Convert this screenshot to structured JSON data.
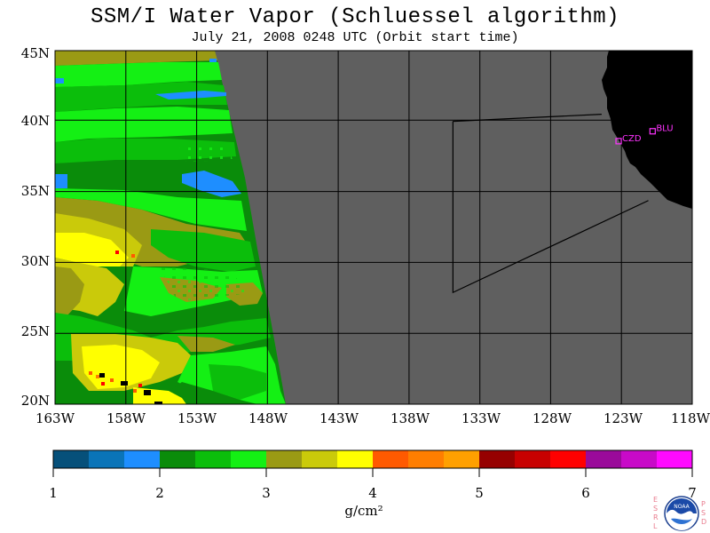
{
  "title": "SSM/I Water Vapor (Schluessel algorithm)",
  "subtitle": "July 21, 2008  0248 UTC  (Orbit start time)",
  "map": {
    "lon_range": [
      -163,
      -118
    ],
    "lat_range": [
      20,
      45
    ],
    "lat_labels": [
      "45N",
      "40N",
      "35N",
      "30N",
      "25N",
      "20N"
    ],
    "lon_labels": [
      "163W",
      "158W",
      "153W",
      "148W",
      "143W",
      "138W",
      "133W",
      "128W",
      "123W",
      "118W"
    ],
    "no_data_color": "#5f5f5f",
    "land_color": "#000000",
    "stations": [
      {
        "name": "CZD",
        "lat": 38.6,
        "lon": -123.2
      },
      {
        "name": "BLU",
        "lat": 39.3,
        "lon": -120.8
      }
    ],
    "flight_track": [
      [
        -134.9,
        40.0
      ],
      [
        -134.9,
        27.9
      ],
      [
        -121.1,
        34.4
      ]
    ],
    "flight_track_top": [
      [
        -134.9,
        40.0
      ],
      [
        -124.4,
        40.5
      ]
    ]
  },
  "colorbar": {
    "labels": [
      "1",
      "2",
      "3",
      "4",
      "5",
      "6",
      "7"
    ],
    "unit": "g/cm²",
    "colors": [
      "#06507a",
      "#0a74b8",
      "#1e8eff",
      "#0a8c0a",
      "#0bbe0b",
      "#14f014",
      "#9a9a14",
      "#caca0a",
      "#ffff00",
      "#ff5a00",
      "#ff7e00",
      "#ffa000",
      "#960000",
      "#c80000",
      "#ff0000",
      "#9a0a9a",
      "#c80ac8",
      "#ff0aff"
    ]
  },
  "logo": {
    "left_letters": "ESRL",
    "right_letters": "PSD",
    "text": "NOAA"
  }
}
